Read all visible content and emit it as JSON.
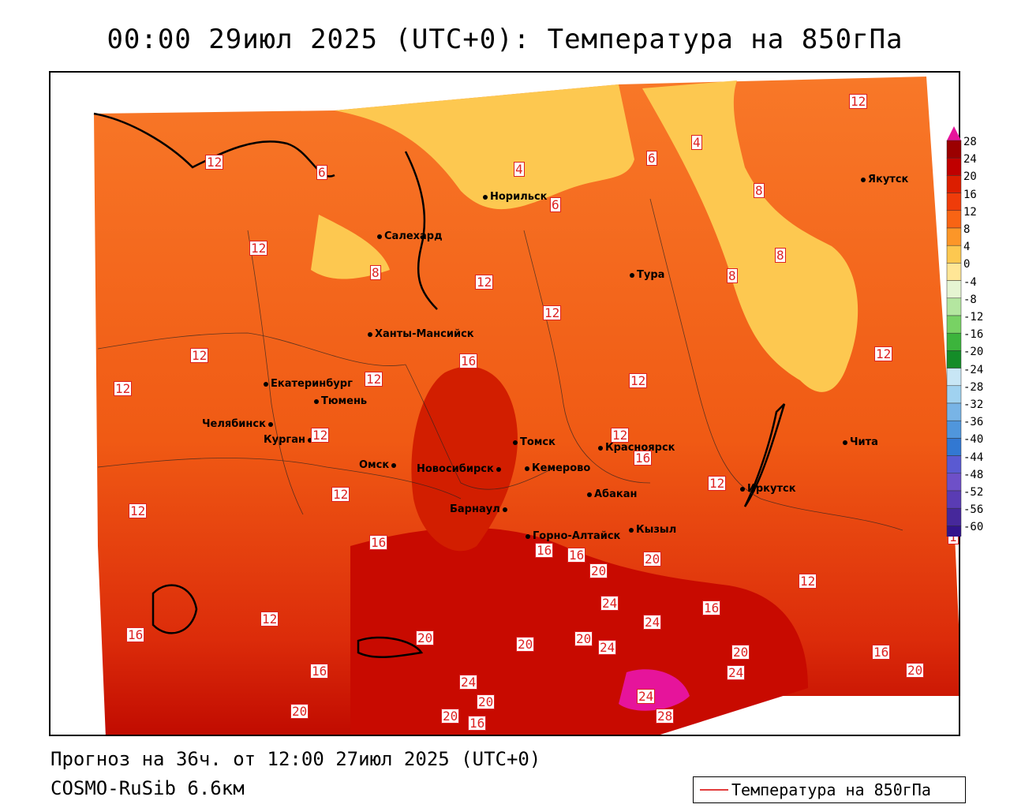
{
  "title": "00:00 29июл 2025 (UTC+0): Температура на 850гПа",
  "footer": {
    "forecast": "Прогноз на 36ч. от 12:00 27июл 2025 (UTC+0)",
    "model": "COSMO-RuSib 6.6км"
  },
  "legend": {
    "label": "Температура на 850гПа",
    "line_color": "#e23c3c"
  },
  "scale": {
    "labels": [
      "28",
      "24",
      "20",
      "16",
      "12",
      "8",
      "4",
      "0",
      "-4",
      "-8",
      "-12",
      "-16",
      "-20",
      "-24",
      "-28",
      "-32",
      "-36",
      "-40",
      "-44",
      "-48",
      "-52",
      "-56",
      "-60"
    ],
    "colors": [
      "#9b0000",
      "#c00000",
      "#dc1e00",
      "#ef3c0a",
      "#f86414",
      "#fc9628",
      "#fdc850",
      "#ffe696",
      "#e6f5d2",
      "#b4e6a0",
      "#78d264",
      "#3cb43c",
      "#148c28",
      "#c8e6f5",
      "#a0d2f0",
      "#78b4e6",
      "#5096dc",
      "#3278d2",
      "#5a5ad2",
      "#6e50c8",
      "#5a3cb4",
      "#46289b",
      "#32148c"
    ]
  },
  "cities": [
    {
      "name": "Норильск"
    },
    {
      "name": "Якутск"
    },
    {
      "name": "Салехард"
    },
    {
      "name": "Тура"
    },
    {
      "name": "Ханты-Мансийск"
    },
    {
      "name": "Екатеринбург"
    },
    {
      "name": "Тюмень"
    },
    {
      "name": "Челябинск"
    },
    {
      "name": "Курган"
    },
    {
      "name": "Омск"
    },
    {
      "name": "Новосибирск"
    },
    {
      "name": "Томск"
    },
    {
      "name": "Кемерово"
    },
    {
      "name": "Красноярск"
    },
    {
      "name": "Абакан"
    },
    {
      "name": "Барнаул"
    },
    {
      "name": "Горно-Алтайск"
    },
    {
      "name": "Кызыл"
    },
    {
      "name": "Иркутск"
    },
    {
      "name": "Чита"
    }
  ],
  "isotherm_labels": [
    "12",
    "6",
    "4",
    "6",
    "4",
    "12",
    "12",
    "8",
    "6",
    "8",
    "8",
    "8",
    "12",
    "12",
    "12",
    "16",
    "12",
    "12",
    "12",
    "12",
    "12",
    "12",
    "12",
    "12",
    "12",
    "16",
    "16",
    "16",
    "16",
    "20",
    "20",
    "24",
    "24",
    "24",
    "20",
    "20",
    "12",
    "16",
    "12",
    "20",
    "24",
    "16",
    "16",
    "20",
    "20",
    "24",
    "20",
    "24",
    "20",
    "28",
    "16",
    "20",
    "16",
    "1"
  ]
}
